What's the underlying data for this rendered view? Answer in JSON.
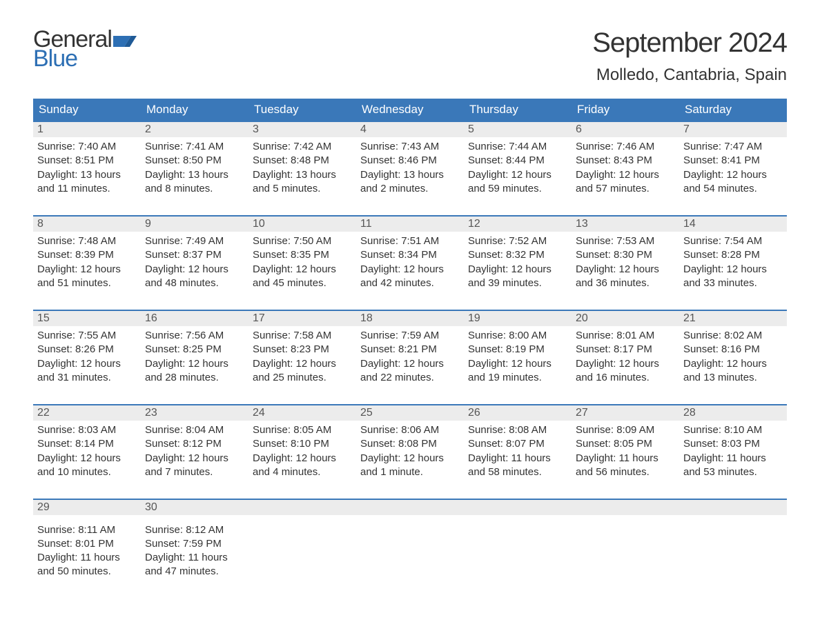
{
  "logo": {
    "word1": "General",
    "word2": "Blue",
    "flag_color": "#2d6fb4",
    "text_color": "#333333"
  },
  "title": "September 2024",
  "location": "Molledo, Cantabria, Spain",
  "colors": {
    "header_bg": "#3a78b9",
    "header_text": "#ffffff",
    "daynum_bg": "#ececec",
    "daynum_border": "#3a78b9",
    "body_text": "#333333",
    "page_bg": "#ffffff"
  },
  "fonts": {
    "title_size": 40,
    "location_size": 24,
    "weekday_size": 17,
    "daynum_size": 16,
    "detail_size": 15
  },
  "weekdays": [
    "Sunday",
    "Monday",
    "Tuesday",
    "Wednesday",
    "Thursday",
    "Friday",
    "Saturday"
  ],
  "layout": {
    "columns": 7,
    "rows": 5
  },
  "days": [
    {
      "num": "1",
      "sunrise": "7:40 AM",
      "sunset": "8:51 PM",
      "daylight": "13 hours and 11 minutes."
    },
    {
      "num": "2",
      "sunrise": "7:41 AM",
      "sunset": "8:50 PM",
      "daylight": "13 hours and 8 minutes."
    },
    {
      "num": "3",
      "sunrise": "7:42 AM",
      "sunset": "8:48 PM",
      "daylight": "13 hours and 5 minutes."
    },
    {
      "num": "4",
      "sunrise": "7:43 AM",
      "sunset": "8:46 PM",
      "daylight": "13 hours and 2 minutes."
    },
    {
      "num": "5",
      "sunrise": "7:44 AM",
      "sunset": "8:44 PM",
      "daylight": "12 hours and 59 minutes."
    },
    {
      "num": "6",
      "sunrise": "7:46 AM",
      "sunset": "8:43 PM",
      "daylight": "12 hours and 57 minutes."
    },
    {
      "num": "7",
      "sunrise": "7:47 AM",
      "sunset": "8:41 PM",
      "daylight": "12 hours and 54 minutes."
    },
    {
      "num": "8",
      "sunrise": "7:48 AM",
      "sunset": "8:39 PM",
      "daylight": "12 hours and 51 minutes."
    },
    {
      "num": "9",
      "sunrise": "7:49 AM",
      "sunset": "8:37 PM",
      "daylight": "12 hours and 48 minutes."
    },
    {
      "num": "10",
      "sunrise": "7:50 AM",
      "sunset": "8:35 PM",
      "daylight": "12 hours and 45 minutes."
    },
    {
      "num": "11",
      "sunrise": "7:51 AM",
      "sunset": "8:34 PM",
      "daylight": "12 hours and 42 minutes."
    },
    {
      "num": "12",
      "sunrise": "7:52 AM",
      "sunset": "8:32 PM",
      "daylight": "12 hours and 39 minutes."
    },
    {
      "num": "13",
      "sunrise": "7:53 AM",
      "sunset": "8:30 PM",
      "daylight": "12 hours and 36 minutes."
    },
    {
      "num": "14",
      "sunrise": "7:54 AM",
      "sunset": "8:28 PM",
      "daylight": "12 hours and 33 minutes."
    },
    {
      "num": "15",
      "sunrise": "7:55 AM",
      "sunset": "8:26 PM",
      "daylight": "12 hours and 31 minutes."
    },
    {
      "num": "16",
      "sunrise": "7:56 AM",
      "sunset": "8:25 PM",
      "daylight": "12 hours and 28 minutes."
    },
    {
      "num": "17",
      "sunrise": "7:58 AM",
      "sunset": "8:23 PM",
      "daylight": "12 hours and 25 minutes."
    },
    {
      "num": "18",
      "sunrise": "7:59 AM",
      "sunset": "8:21 PM",
      "daylight": "12 hours and 22 minutes."
    },
    {
      "num": "19",
      "sunrise": "8:00 AM",
      "sunset": "8:19 PM",
      "daylight": "12 hours and 19 minutes."
    },
    {
      "num": "20",
      "sunrise": "8:01 AM",
      "sunset": "8:17 PM",
      "daylight": "12 hours and 16 minutes."
    },
    {
      "num": "21",
      "sunrise": "8:02 AM",
      "sunset": "8:16 PM",
      "daylight": "12 hours and 13 minutes."
    },
    {
      "num": "22",
      "sunrise": "8:03 AM",
      "sunset": "8:14 PM",
      "daylight": "12 hours and 10 minutes."
    },
    {
      "num": "23",
      "sunrise": "8:04 AM",
      "sunset": "8:12 PM",
      "daylight": "12 hours and 7 minutes."
    },
    {
      "num": "24",
      "sunrise": "8:05 AM",
      "sunset": "8:10 PM",
      "daylight": "12 hours and 4 minutes."
    },
    {
      "num": "25",
      "sunrise": "8:06 AM",
      "sunset": "8:08 PM",
      "daylight": "12 hours and 1 minute."
    },
    {
      "num": "26",
      "sunrise": "8:08 AM",
      "sunset": "8:07 PM",
      "daylight": "11 hours and 58 minutes."
    },
    {
      "num": "27",
      "sunrise": "8:09 AM",
      "sunset": "8:05 PM",
      "daylight": "11 hours and 56 minutes."
    },
    {
      "num": "28",
      "sunrise": "8:10 AM",
      "sunset": "8:03 PM",
      "daylight": "11 hours and 53 minutes."
    },
    {
      "num": "29",
      "sunrise": "8:11 AM",
      "sunset": "8:01 PM",
      "daylight": "11 hours and 50 minutes."
    },
    {
      "num": "30",
      "sunrise": "8:12 AM",
      "sunset": "7:59 PM",
      "daylight": "11 hours and 47 minutes."
    }
  ],
  "labels": {
    "sunrise": "Sunrise:",
    "sunset": "Sunset:",
    "daylight": "Daylight:"
  }
}
